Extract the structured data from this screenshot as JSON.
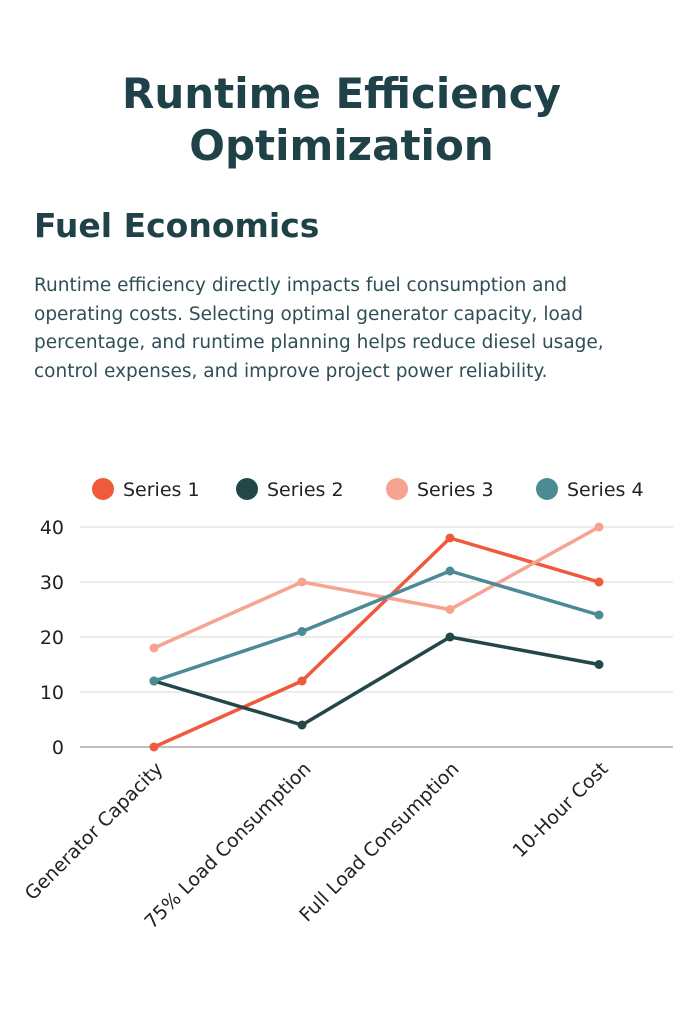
{
  "page": {
    "title": "Runtime Efficiency Optimization",
    "section_heading": "Fuel Economics",
    "body": "Runtime efficiency directly impacts fuel consumption and operating costs. Selecting optimal generator capacity, load percentage, and runtime planning helps reduce diesel usage, control expenses, and improve project power reliability."
  },
  "colors": {
    "heading": "#1f4148",
    "body_text": "#2d4f55",
    "grid": "#d9d9d9",
    "axis": "#9a9a9a"
  },
  "chart_data": {
    "type": "line",
    "title": "",
    "xlabel": "",
    "ylabel": "",
    "categories": [
      "Generator Capacity",
      "75% Load Consumption",
      "Full Load Consumption",
      "10-Hour Cost"
    ],
    "ylim": [
      0,
      40
    ],
    "yticks": [
      0,
      10,
      20,
      30,
      40
    ],
    "grid": true,
    "legend_position": "top",
    "series": [
      {
        "name": "Series 1",
        "color": "#ef5a3c",
        "values": [
          0,
          12,
          38,
          30
        ]
      },
      {
        "name": "Series 2",
        "color": "#234649",
        "values": [
          12,
          4,
          20,
          15
        ]
      },
      {
        "name": "Series 3",
        "color": "#f7a391",
        "values": [
          18,
          30,
          25,
          40
        ]
      },
      {
        "name": "Series 4",
        "color": "#4c8b96",
        "values": [
          12,
          21,
          32,
          24
        ]
      }
    ]
  }
}
